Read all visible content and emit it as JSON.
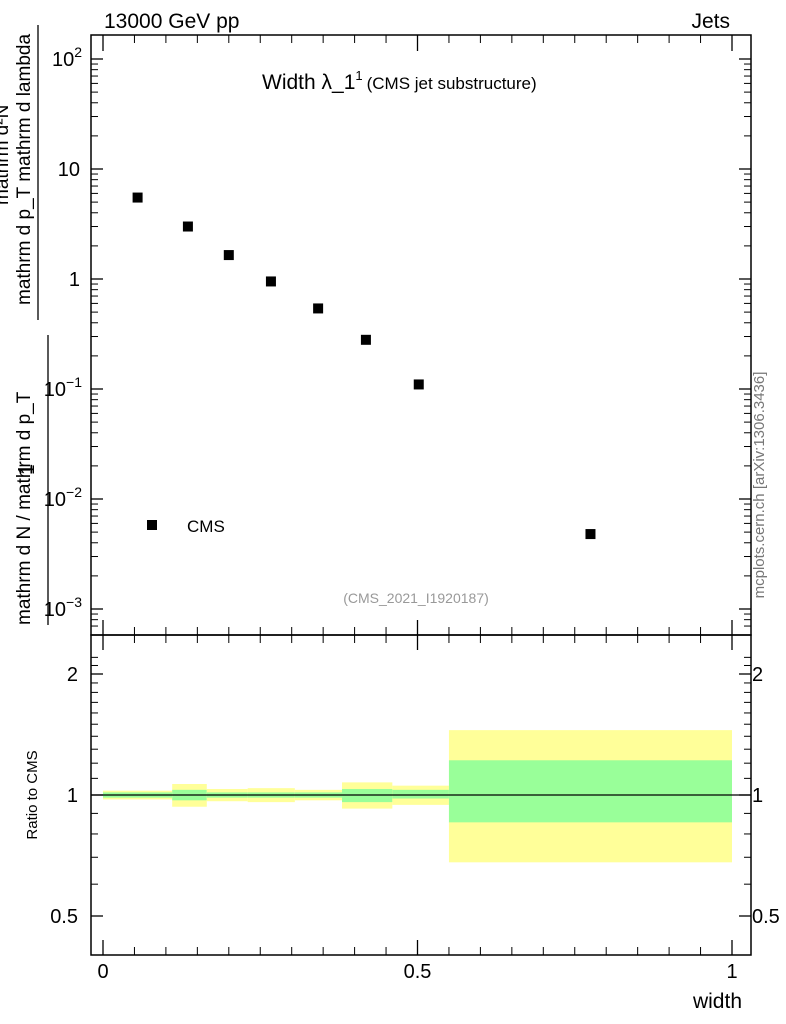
{
  "header": {
    "energy_label": "13000 GeV pp",
    "process_label": "Jets"
  },
  "plot_title": {
    "main": "Width λ_1",
    "superscript": "1",
    "subtitle": "(CMS jet substructure)"
  },
  "watermark": "mcplots.cern.ch [arXiv:1306.3436]",
  "analysis_id": "(CMS_2021_I1920187)",
  "y_label": {
    "numerator": "1",
    "denominator": "mathrm d N / mathrm d p_T",
    "denominator_sub": "T",
    "num2": "mathrm d²N",
    "den2": "mathrm d p_T mathrm d lambda"
  },
  "ratio_label": "Ratio to CMS",
  "x_label": "width",
  "legend": {
    "entry": "CMS"
  },
  "y_ticks": [
    "10^2",
    "10",
    "1",
    "10^-1",
    "10^-2",
    "10^-3"
  ],
  "chart_data": [
    {
      "type": "scatter",
      "title": "Width λ_1^1 (CMS jet substructure)",
      "xlabel": "width",
      "ylabel": "1/N dN/dp_T d²N/(dp_T dλ)",
      "yscale": "log",
      "xlim": [
        -0.02,
        1.01
      ],
      "ylim": [
        0.0006,
        160
      ],
      "series": [
        {
          "name": "CMS",
          "x": [
            0.055,
            0.135,
            0.2,
            0.267,
            0.342,
            0.418,
            0.502,
            0.775
          ],
          "values": [
            5.5,
            3.0,
            1.65,
            0.95,
            0.54,
            0.28,
            0.11,
            0.0048
          ]
        }
      ]
    },
    {
      "type": "bar",
      "title": "Ratio to CMS",
      "xlabel": "width",
      "ylabel": "Ratio to CMS",
      "ylim": [
        0.4,
        2.3
      ],
      "y_ticks": [
        0.5,
        1,
        2
      ],
      "x_ticks": [
        0,
        0.5,
        1
      ],
      "x_tick_labels": [
        "0",
        "0.5",
        "1"
      ],
      "bins": [
        {
          "x_low": 0.0,
          "x_high": 0.11,
          "stat_low": 0.985,
          "stat_high": 1.015,
          "tot_low": 0.975,
          "tot_high": 1.025
        },
        {
          "x_low": 0.11,
          "x_high": 0.165,
          "stat_low": 0.97,
          "stat_high": 1.03,
          "tot_low": 0.935,
          "tot_high": 1.065
        },
        {
          "x_low": 0.165,
          "x_high": 0.23,
          "stat_low": 0.985,
          "stat_high": 1.015,
          "tot_low": 0.965,
          "tot_high": 1.035
        },
        {
          "x_low": 0.23,
          "x_high": 0.305,
          "stat_low": 0.985,
          "stat_high": 1.015,
          "tot_low": 0.96,
          "tot_high": 1.04
        },
        {
          "x_low": 0.305,
          "x_high": 0.38,
          "stat_low": 0.985,
          "stat_high": 1.015,
          "tot_low": 0.97,
          "tot_high": 1.03
        },
        {
          "x_low": 0.38,
          "x_high": 0.46,
          "stat_low": 0.96,
          "stat_high": 1.035,
          "tot_low": 0.925,
          "tot_high": 1.075
        },
        {
          "x_low": 0.46,
          "x_high": 0.55,
          "stat_low": 0.98,
          "stat_high": 1.03,
          "tot_low": 0.945,
          "tot_high": 1.055
        },
        {
          "x_low": 0.55,
          "x_high": 1.0,
          "stat_low": 0.855,
          "stat_high": 1.22,
          "tot_low": 0.68,
          "tot_high": 1.45
        }
      ]
    }
  ]
}
